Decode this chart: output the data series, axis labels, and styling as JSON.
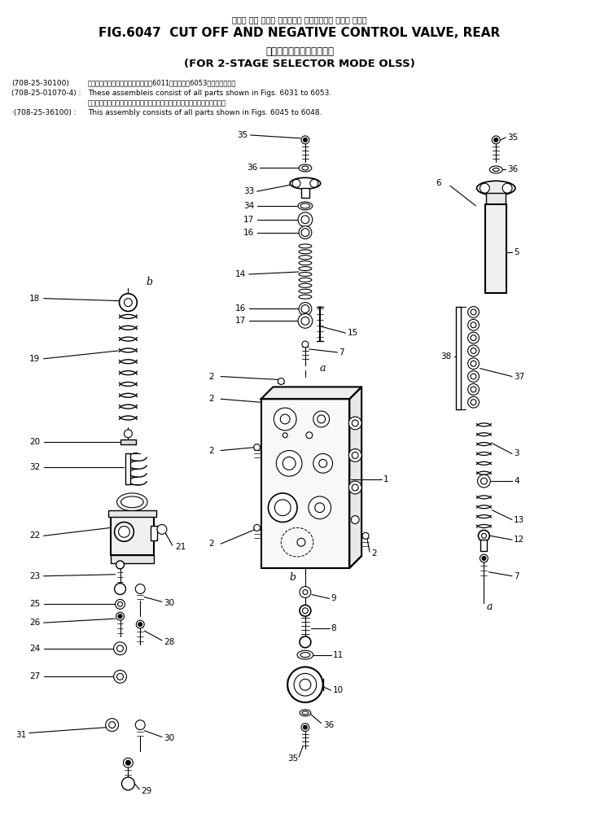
{
  "title_jp": "カット オフ および ネガティブ コントロール バルブ リヤー",
  "title_en": "FIG.6047  CUT OFF AND NEGATIVE CONTROL VALVE, REAR",
  "subtitle_jp": "２段モード切換ＯＬＳＳ用",
  "subtitle_en": "(FOR 2-STAGE SELECTOR MODE OLSS)",
  "bg_color": "#ffffff",
  "line_color": "#000000",
  "text_color": "#000000",
  "figsize": [
    7.37,
    10.21
  ],
  "dpi": 100
}
